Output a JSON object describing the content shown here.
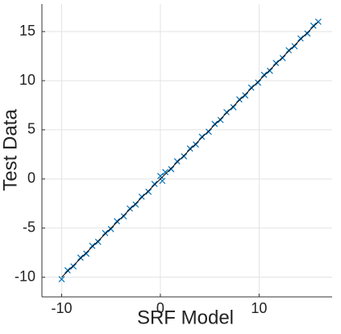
{
  "chart_data": {
    "type": "scatter",
    "xlabel": "SRF Model",
    "ylabel": "Test Data",
    "x": [
      -10,
      -9.4,
      -8.8,
      -8.1,
      -7.5,
      -6.9,
      -6.3,
      -5.6,
      -5,
      -4.4,
      -3.7,
      -3.1,
      -2.5,
      -1.9,
      -1.2,
      -0.6,
      0,
      0.2,
      0.5,
      1.1,
      1.7,
      2.4,
      3,
      3.6,
      4.2,
      4.9,
      5.5,
      6.1,
      6.7,
      7.4,
      8,
      8.6,
      9.2,
      9.9,
      10.5,
      11.1,
      11.7,
      12.4,
      13,
      13.6,
      14.2,
      14.9,
      15.5,
      16
    ],
    "series": [
      {
        "color": "#0072bd",
        "values": [
          -10.2,
          -9.3,
          -8.9,
          -8.0,
          -7.6,
          -6.8,
          -6.4,
          -5.5,
          -5.1,
          -4.3,
          -3.8,
          -3.0,
          -2.6,
          -1.8,
          -1.3,
          -0.5,
          0.3,
          -0.2,
          0.7,
          1.0,
          1.8,
          2.3,
          3.1,
          3.5,
          4.3,
          4.8,
          5.6,
          6.0,
          6.8,
          7.3,
          8.1,
          8.5,
          9.3,
          9.8,
          10.6,
          11.0,
          11.8,
          12.3,
          13.1,
          13.5,
          14.3,
          14.8,
          15.6,
          16.0
        ]
      }
    ],
    "fit_line": {
      "x": [
        -10,
        16
      ],
      "y": [
        -10,
        16
      ],
      "color": "#000000"
    },
    "xlim": [
      -12,
      17.4
    ],
    "ylim": [
      -12,
      17.8
    ],
    "xticks": [
      -10,
      0,
      10
    ],
    "yticks": [
      -10,
      -5,
      0,
      5,
      10,
      15
    ],
    "grid": true
  }
}
